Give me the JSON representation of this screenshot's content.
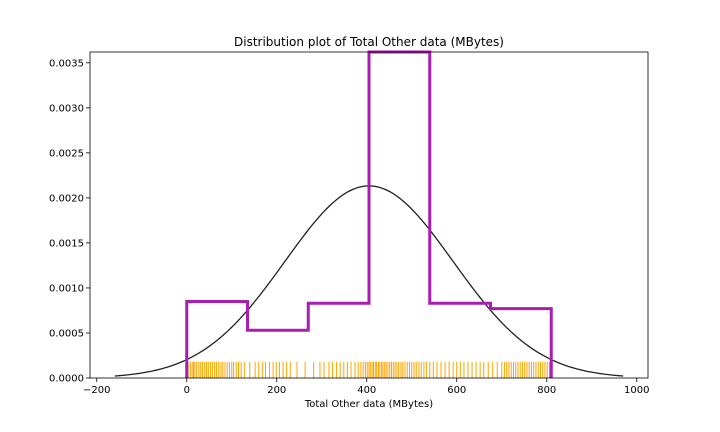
{
  "chart_data": {
    "type": "histogram",
    "title": "Distribution plot of Total Other data (MBytes)",
    "xlabel": "Total Other data (MBytes)",
    "ylabel": "",
    "xlim": [
      -215,
      1025
    ],
    "ylim": [
      0,
      0.00362
    ],
    "x_ticks": [
      -200,
      0,
      200,
      400,
      600,
      800,
      1000
    ],
    "x_tick_labels": [
      "−200",
      "0",
      "200",
      "400",
      "600",
      "800",
      "1000"
    ],
    "y_ticks": [
      0,
      0.0005,
      0.001,
      0.0015,
      0.002,
      0.0025,
      0.003,
      0.0035
    ],
    "y_tick_labels": [
      "0.0000",
      "0.0005",
      "0.0010",
      "0.0015",
      "0.0020",
      "0.0025",
      "0.0030",
      "0.0035"
    ],
    "grid": false,
    "histogram": {
      "style": "step",
      "color": "#a91db3",
      "bins": [
        {
          "x0": 0,
          "x1": 135,
          "density": 0.00085
        },
        {
          "x0": 135,
          "x1": 270,
          "density": 0.00053
        },
        {
          "x0": 270,
          "x1": 405,
          "density": 0.00083
        },
        {
          "x0": 405,
          "x1": 540,
          "density": 0.00362
        },
        {
          "x0": 540,
          "x1": 675,
          "density": 0.00083
        },
        {
          "x0": 675,
          "x1": 810,
          "density": 0.00077
        }
      ]
    },
    "fit_curve": {
      "type": "normal",
      "color": "#222222",
      "mean": 405,
      "std": 187,
      "x_range": [
        -160,
        970
      ]
    },
    "rug": {
      "color": "#ffa500",
      "height": 0.00018,
      "values": [
        3,
        8,
        12,
        15,
        18,
        22,
        27,
        31,
        35,
        40,
        44,
        48,
        53,
        57,
        62,
        66,
        71,
        76,
        80,
        85,
        90,
        95,
        100,
        104,
        110,
        115,
        121,
        128,
        140,
        152,
        160,
        168,
        175,
        184,
        192,
        199,
        206,
        214,
        222,
        230,
        245,
        263,
        282,
        296,
        305,
        316,
        324,
        333,
        341,
        349,
        357,
        365,
        374,
        381,
        387,
        392,
        397,
        401,
        405,
        408,
        412,
        415,
        419,
        422,
        426,
        429,
        433,
        436,
        440,
        443,
        447,
        451,
        455,
        459,
        463,
        467,
        471,
        476,
        480,
        485,
        490,
        495,
        500,
        505,
        510,
        516,
        521,
        527,
        533,
        540,
        548,
        556,
        565,
        574,
        583,
        592,
        600,
        608,
        616,
        625,
        634,
        643,
        652,
        660,
        670,
        680,
        690,
        700,
        706,
        711,
        716,
        721,
        726,
        731,
        736,
        741,
        746,
        751,
        756,
        761,
        766,
        771,
        776,
        781,
        786,
        791,
        796,
        801,
        806,
        809
      ]
    }
  }
}
